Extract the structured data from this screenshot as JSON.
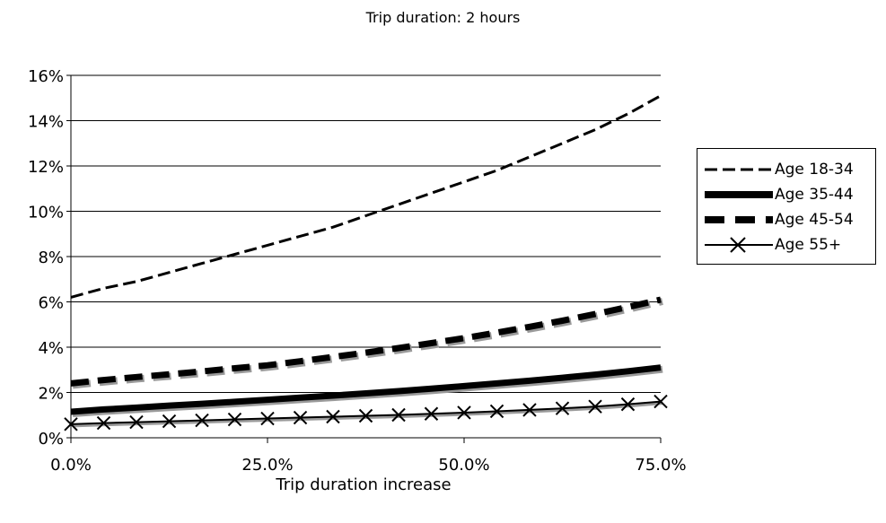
{
  "chart_data": {
    "type": "line",
    "title": "Trip duration: 2 hours",
    "xlabel": "Trip duration increase",
    "ylabel": "",
    "x": [
      0,
      4.17,
      8.33,
      12.5,
      16.67,
      20.83,
      25,
      29.17,
      33.33,
      37.5,
      41.67,
      45.83,
      50,
      54.17,
      58.33,
      62.5,
      66.67,
      70.83,
      75
    ],
    "x_ticks": [
      "0.0%",
      "25.0%",
      "50.0%",
      "75.0%"
    ],
    "x_tick_values": [
      0,
      25,
      50,
      75
    ],
    "y_ticks": [
      "0%",
      "2%",
      "4%",
      "6%",
      "8%",
      "10%",
      "12%",
      "14%",
      "16%"
    ],
    "y_tick_values": [
      0,
      2,
      4,
      6,
      8,
      10,
      12,
      14,
      16
    ],
    "xlim": [
      0,
      75
    ],
    "ylim": [
      0,
      16
    ],
    "grid": "horizontal",
    "legend_position": "right",
    "series": [
      {
        "name": "Age 18-34",
        "style": "long-dash",
        "values": [
          6.2,
          6.6,
          6.9,
          7.3,
          7.7,
          8.1,
          8.5,
          8.9,
          9.3,
          9.8,
          10.3,
          10.8,
          11.3,
          11.8,
          12.4,
          13.0,
          13.6,
          14.3,
          15.1
        ]
      },
      {
        "name": "Age 35-44",
        "style": "thick-solid",
        "values": [
          1.15,
          1.25,
          1.33,
          1.42,
          1.5,
          1.59,
          1.68,
          1.77,
          1.86,
          1.96,
          2.06,
          2.17,
          2.28,
          2.4,
          2.52,
          2.65,
          2.79,
          2.94,
          3.1
        ]
      },
      {
        "name": "Age 45-54",
        "style": "thick-dash",
        "values": [
          2.4,
          2.55,
          2.68,
          2.8,
          2.93,
          3.07,
          3.2,
          3.38,
          3.57,
          3.76,
          3.96,
          4.18,
          4.4,
          4.64,
          4.9,
          5.17,
          5.46,
          5.77,
          6.1
        ]
      },
      {
        "name": "Age 55+",
        "style": "solid-x-marker",
        "values": [
          0.6,
          0.65,
          0.69,
          0.73,
          0.77,
          0.81,
          0.85,
          0.89,
          0.93,
          0.97,
          1.01,
          1.06,
          1.11,
          1.17,
          1.23,
          1.3,
          1.38,
          1.48,
          1.6
        ]
      }
    ]
  }
}
